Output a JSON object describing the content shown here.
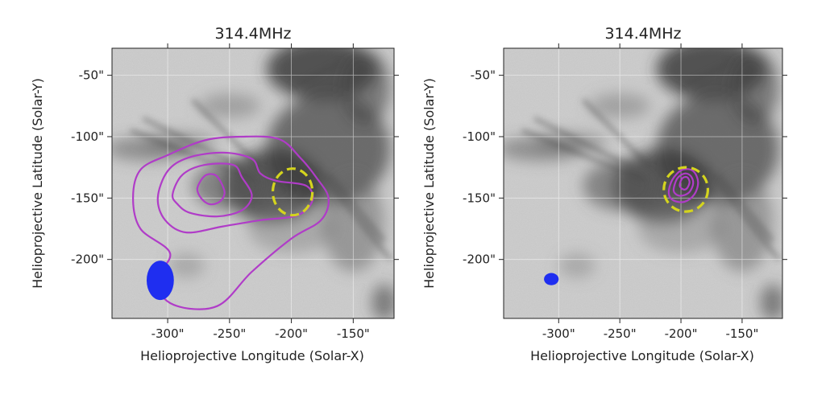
{
  "chart_data": [
    {
      "type": "image",
      "title": "314.4MHz",
      "xlabel": "Helioprojective Longitude (Solar-X)",
      "ylabel": "Helioprojective Latitude (Solar-Y)",
      "xlim": [
        -345,
        -117
      ],
      "ylim": [
        -248,
        -28
      ],
      "xticks": [
        -300,
        -250,
        -200,
        -150
      ],
      "xtick_labels": [
        "-300\"",
        "-250\"",
        "-200\"",
        "-150\""
      ],
      "yticks": [
        -50,
        -100,
        -150,
        -200
      ],
      "ytick_labels": [
        "-50\"",
        "-100\"",
        "-150\"",
        "-200\""
      ],
      "grid": true,
      "background": "grayscale EUV solar image",
      "contour_color": "#b03cc8",
      "contours": [
        {
          "level": 1,
          "points": [
            [
              -328,
              -150
            ],
            [
              -322,
              -127
            ],
            [
              -300,
              -115
            ],
            [
              -270,
              -103
            ],
            [
              -240,
              -100
            ],
            [
              -210,
              -102
            ],
            [
              -193,
              -117
            ],
            [
              -180,
              -133
            ],
            [
              -170,
              -150
            ],
            [
              -176,
              -168
            ],
            [
              -200,
              -183
            ],
            [
              -232,
              -210
            ],
            [
              -260,
              -238
            ],
            [
              -295,
              -237
            ],
            [
              -310,
              -218
            ],
            [
              -298,
              -195
            ],
            [
              -322,
              -175
            ]
          ]
        },
        {
          "level": 2,
          "points": [
            [
              -308,
              -150
            ],
            [
              -300,
              -128
            ],
            [
              -283,
              -117
            ],
            [
              -255,
              -113
            ],
            [
              -232,
              -118
            ],
            [
              -225,
              -130
            ],
            [
              -212,
              -136
            ],
            [
              -188,
              -140
            ],
            [
              -183,
              -152
            ],
            [
              -195,
              -164
            ],
            [
              -225,
              -168
            ],
            [
              -255,
              -173
            ],
            [
              -285,
              -178
            ],
            [
              -302,
              -168
            ]
          ]
        },
        {
          "level": 3,
          "points": [
            [
              -296,
              -147
            ],
            [
              -288,
              -131
            ],
            [
              -270,
              -123
            ],
            [
              -247,
              -123
            ],
            [
              -240,
              -133
            ],
            [
              -232,
              -148
            ],
            [
              -240,
              -160
            ],
            [
              -260,
              -165
            ],
            [
              -282,
              -162
            ],
            [
              -292,
              -155
            ]
          ]
        },
        {
          "level": 4,
          "points": [
            [
              -276,
              -142
            ],
            [
              -270,
              -132
            ],
            [
              -262,
              -131
            ],
            [
              -257,
              -137
            ],
            [
              -254,
              -146
            ],
            [
              -258,
              -153
            ],
            [
              -266,
              -155
            ],
            [
              -273,
              -150
            ]
          ]
        }
      ],
      "marker_ellipse": {
        "cx": -199,
        "cy": -145,
        "rx": 16,
        "ry": 19,
        "color": "#d4d41e",
        "style": "dashed"
      },
      "beam": {
        "cx": -306,
        "cy": -217,
        "rx": 11,
        "ry": 16,
        "color": "#1f2ef0"
      }
    },
    {
      "type": "image",
      "title": "314.4MHz",
      "xlabel": "Helioprojective Longitude (Solar-X)",
      "ylabel": "Helioprojective Latitude (Solar-Y)",
      "xlim": [
        -345,
        -117
      ],
      "ylim": [
        -248,
        -28
      ],
      "xticks": [
        -300,
        -250,
        -200,
        -150
      ],
      "xtick_labels": [
        "-300\"",
        "-250\"",
        "-200\"",
        "-150\""
      ],
      "yticks": [
        -50,
        -100,
        -150,
        -200
      ],
      "ytick_labels": [
        "-50\"",
        "-100\"",
        "-150\"",
        "-200\""
      ],
      "grid": true,
      "background": "grayscale EUV solar image",
      "contour_color": "#b03cc8",
      "contours": [
        {
          "level": 1,
          "points": [
            [
              -210,
              -146
            ],
            [
              -207,
              -135
            ],
            [
              -199,
              -127
            ],
            [
              -190,
              -128
            ],
            [
              -186,
              -137
            ],
            [
              -189,
              -147
            ],
            [
              -197,
              -153
            ],
            [
              -206,
              -152
            ]
          ]
        },
        {
          "level": 2,
          "points": [
            [
              -206,
              -143
            ],
            [
              -203,
              -134
            ],
            [
              -197,
              -130
            ],
            [
              -192,
              -132
            ],
            [
              -190,
              -138
            ],
            [
              -193,
              -145
            ],
            [
              -199,
              -148
            ],
            [
              -204,
              -147
            ]
          ]
        },
        {
          "level": 3,
          "points": [
            [
              -201,
              -140
            ],
            [
              -199,
              -134
            ],
            [
              -195,
              -133
            ],
            [
              -193,
              -137
            ],
            [
              -195,
              -142
            ],
            [
              -198,
              -143
            ]
          ]
        }
      ],
      "marker_ellipse": {
        "cx": -196,
        "cy": -143,
        "rx": 18,
        "ry": 18,
        "color": "#d4d41e",
        "style": "dashed"
      },
      "beam": {
        "cx": -306,
        "cy": -216,
        "rx": 6,
        "ry": 5,
        "color": "#1f2ef0"
      }
    }
  ]
}
